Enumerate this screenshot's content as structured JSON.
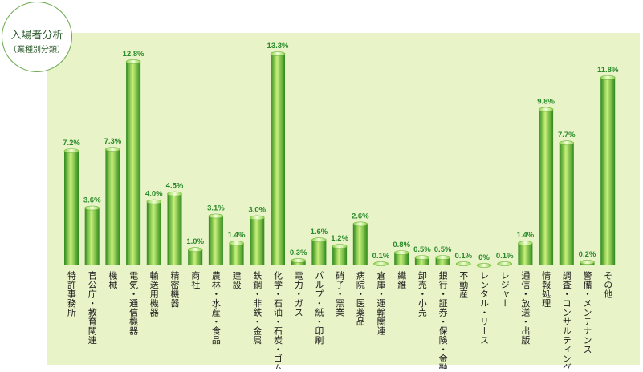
{
  "title": {
    "main": "入場者分析",
    "sub": "（業種別分類）"
  },
  "colors": {
    "panel": "#e8f3c8",
    "bar_dark": "#2f8a1c",
    "bar_light": "#c8f07a",
    "value_label": "#2a8a2a",
    "category_label": "#1a1a1a",
    "badge_border": "#6aa84f"
  },
  "chart_data": {
    "type": "bar",
    "title": "入場者分析（業種別分類）",
    "xlabel": "",
    "ylabel": "",
    "ylim": [
      0,
      13.3
    ],
    "grid": false,
    "legend": "none",
    "categories": [
      "特許事務所",
      "官公庁・教育関連",
      "機械",
      "電気・通信機器",
      "輸送用機器",
      "精密機器",
      "商社",
      "農林・水産・食品",
      "建設",
      "鉄鋼・非鉄・金属",
      "化学・石油・石炭・ゴム",
      "電力・ガス",
      "パルプ・紙・印刷",
      "硝子・窯業",
      "病院・医薬品",
      "倉庫・運輸関連",
      "繊維",
      "卸売・小売",
      "銀行・証券・保険・金融",
      "不動産",
      "レンタル・リース",
      "レジャー",
      "通信・放送・出版",
      "情報処理",
      "調査・コンサルティング",
      "警備・メンテナンス",
      "その他"
    ],
    "values": [
      7.2,
      3.6,
      7.3,
      12.8,
      4.0,
      4.5,
      1.0,
      3.1,
      1.4,
      3.0,
      13.3,
      0.3,
      1.6,
      1.2,
      2.6,
      0.1,
      0.8,
      0.5,
      0.5,
      0.1,
      0,
      0.1,
      1.4,
      9.8,
      7.7,
      0.2,
      11.8
    ],
    "value_labels": [
      "7.2%",
      "3.6%",
      "7.3%",
      "12.8%",
      "4.0%",
      "4.5%",
      "1.0%",
      "3.1%",
      "1.4%",
      "3.0%",
      "13.3%",
      "0.3%",
      "1.6%",
      "1.2%",
      "2.6%",
      "0.1%",
      "0.8%",
      "0.5%",
      "0.5%",
      "0.1%",
      "0%",
      "0.1%",
      "1.4%",
      "9.8%",
      "7.7%",
      "0.2%",
      "11.8%"
    ]
  }
}
